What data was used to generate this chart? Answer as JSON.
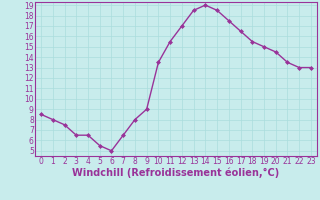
{
  "x": [
    0,
    1,
    2,
    3,
    4,
    5,
    6,
    7,
    8,
    9,
    10,
    11,
    12,
    13,
    14,
    15,
    16,
    17,
    18,
    19,
    20,
    21,
    22,
    23
  ],
  "y": [
    8.5,
    8.0,
    7.5,
    6.5,
    6.5,
    5.5,
    5.0,
    6.5,
    8.0,
    9.0,
    13.5,
    15.5,
    17.0,
    18.5,
    19.0,
    18.5,
    17.5,
    16.5,
    15.5,
    15.0,
    14.5,
    13.5,
    13.0,
    13.0
  ],
  "line_color": "#993399",
  "marker": "D",
  "marker_size": 2,
  "xlabel": "Windchill (Refroidissement éolien,°C)",
  "xlabel_fontsize": 7,
  "ylim": [
    5,
    19
  ],
  "xlim": [
    -0.5,
    23.5
  ],
  "yticks": [
    5,
    6,
    7,
    8,
    9,
    10,
    11,
    12,
    13,
    14,
    15,
    16,
    17,
    18,
    19
  ],
  "xticks": [
    0,
    1,
    2,
    3,
    4,
    5,
    6,
    7,
    8,
    9,
    10,
    11,
    12,
    13,
    14,
    15,
    16,
    17,
    18,
    19,
    20,
    21,
    22,
    23
  ],
  "xtick_labels": [
    "0",
    "1",
    "2",
    "3",
    "4",
    "5",
    "6",
    "7",
    "8",
    "9",
    "10",
    "11",
    "12",
    "13",
    "14",
    "15",
    "16",
    "17",
    "18",
    "19",
    "20",
    "21",
    "22",
    "23"
  ],
  "grid_color": "#aadddd",
  "bg_color": "#c8ecec",
  "tick_color": "#993399",
  "tick_fontsize": 5.5,
  "linewidth": 1.0
}
